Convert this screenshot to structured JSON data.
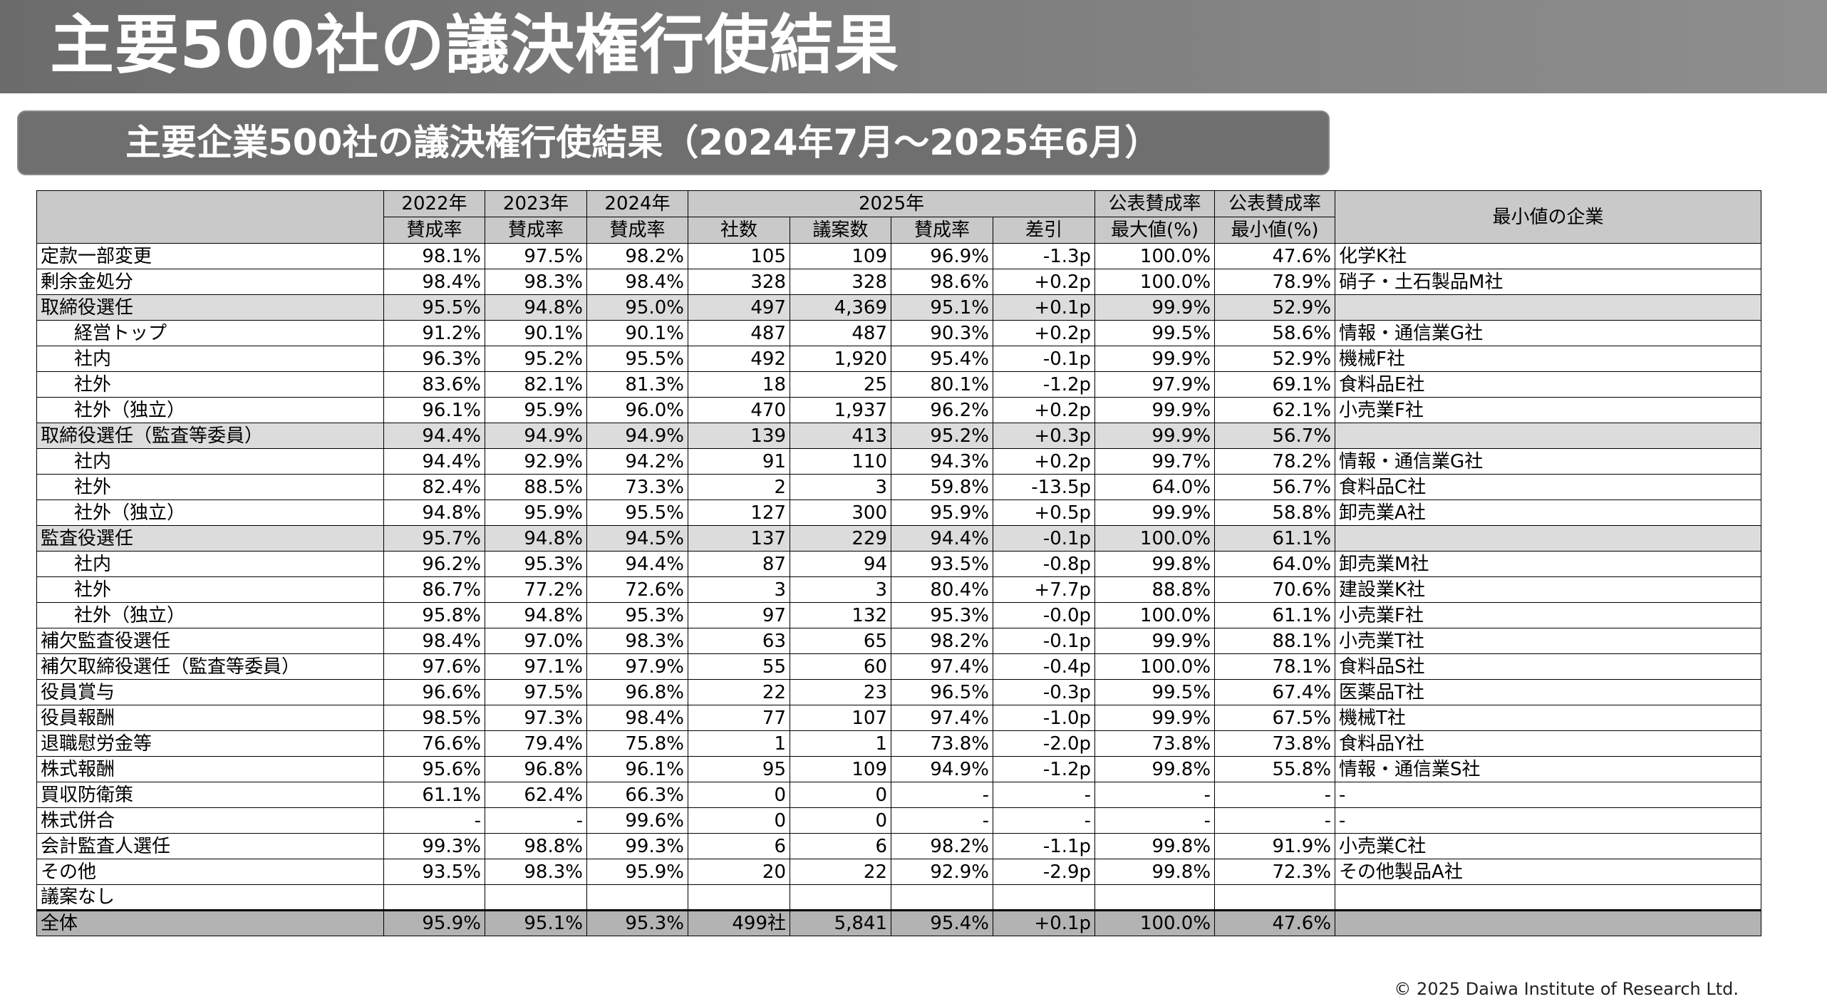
{
  "title": "主要500社の議決権行使結果",
  "subtitle": "主要企業500社の議決権行使結果（2024年7月～2025年6月）",
  "table": {
    "header": {
      "y2022": "2022年",
      "y2023": "2023年",
      "y2024": "2024年",
      "y2025": "2025年",
      "max_top": "公表賛成率",
      "min_top": "公表賛成率",
      "company": "最小値の企業",
      "approval": "賛成率",
      "companies_count": "社数",
      "proposals": "議案数",
      "diff": "差引",
      "max_bottom": "最大値(%)",
      "min_bottom": "最小値(%)"
    },
    "rows": [
      {
        "label": "定款一部変更",
        "style": "normal",
        "y2022": "98.1%",
        "y2023": "97.5%",
        "y2024": "98.2%",
        "companies": "105",
        "proposals": "109",
        "rate": "96.9%",
        "diff": "-1.3p",
        "max": "100.0%",
        "min": "47.6%",
        "company": "化学K社"
      },
      {
        "label": "剰余金処分",
        "style": "normal",
        "y2022": "98.4%",
        "y2023": "98.3%",
        "y2024": "98.4%",
        "companies": "328",
        "proposals": "328",
        "rate": "98.6%",
        "diff": "+0.2p",
        "max": "100.0%",
        "min": "78.9%",
        "company": "硝子・土石製品M社"
      },
      {
        "label": "取締役選任",
        "style": "shade",
        "y2022": "95.5%",
        "y2023": "94.8%",
        "y2024": "95.0%",
        "companies": "497",
        "proposals": "4,369",
        "rate": "95.1%",
        "diff": "+0.1p",
        "max": "99.9%",
        "min": "52.9%",
        "company": ""
      },
      {
        "label": "経営トップ",
        "style": "sub",
        "y2022": "91.2%",
        "y2023": "90.1%",
        "y2024": "90.1%",
        "companies": "487",
        "proposals": "487",
        "rate": "90.3%",
        "diff": "+0.2p",
        "max": "99.5%",
        "min": "58.6%",
        "company": "情報・通信業G社"
      },
      {
        "label": "社内",
        "style": "sub",
        "y2022": "96.3%",
        "y2023": "95.2%",
        "y2024": "95.5%",
        "companies": "492",
        "proposals": "1,920",
        "rate": "95.4%",
        "diff": "-0.1p",
        "max": "99.9%",
        "min": "52.9%",
        "company": "機械F社"
      },
      {
        "label": "社外",
        "style": "sub",
        "y2022": "83.6%",
        "y2023": "82.1%",
        "y2024": "81.3%",
        "companies": "18",
        "proposals": "25",
        "rate": "80.1%",
        "diff": "-1.2p",
        "max": "97.9%",
        "min": "69.1%",
        "company": "食料品E社"
      },
      {
        "label": "社外（独立）",
        "style": "sub",
        "y2022": "96.1%",
        "y2023": "95.9%",
        "y2024": "96.0%",
        "companies": "470",
        "proposals": "1,937",
        "rate": "96.2%",
        "diff": "+0.2p",
        "max": "99.9%",
        "min": "62.1%",
        "company": "小売業F社"
      },
      {
        "label": "取締役選任（監査等委員）",
        "style": "shade",
        "y2022": "94.4%",
        "y2023": "94.9%",
        "y2024": "94.9%",
        "companies": "139",
        "proposals": "413",
        "rate": "95.2%",
        "diff": "+0.3p",
        "max": "99.9%",
        "min": "56.7%",
        "company": ""
      },
      {
        "label": "社内",
        "style": "sub",
        "y2022": "94.4%",
        "y2023": "92.9%",
        "y2024": "94.2%",
        "companies": "91",
        "proposals": "110",
        "rate": "94.3%",
        "diff": "+0.2p",
        "max": "99.7%",
        "min": "78.2%",
        "company": "情報・通信業G社"
      },
      {
        "label": "社外",
        "style": "sub",
        "y2022": "82.4%",
        "y2023": "88.5%",
        "y2024": "73.3%",
        "companies": "2",
        "proposals": "3",
        "rate": "59.8%",
        "diff": "-13.5p",
        "max": "64.0%",
        "min": "56.7%",
        "company": "食料品C社"
      },
      {
        "label": "社外（独立）",
        "style": "sub",
        "y2022": "94.8%",
        "y2023": "95.9%",
        "y2024": "95.5%",
        "companies": "127",
        "proposals": "300",
        "rate": "95.9%",
        "diff": "+0.5p",
        "max": "99.9%",
        "min": "58.8%",
        "company": "卸売業A社"
      },
      {
        "label": "監査役選任",
        "style": "shade",
        "y2022": "95.7%",
        "y2023": "94.8%",
        "y2024": "94.5%",
        "companies": "137",
        "proposals": "229",
        "rate": "94.4%",
        "diff": "-0.1p",
        "max": "100.0%",
        "min": "61.1%",
        "company": ""
      },
      {
        "label": "社内",
        "style": "sub",
        "y2022": "96.2%",
        "y2023": "95.3%",
        "y2024": "94.4%",
        "companies": "87",
        "proposals": "94",
        "rate": "93.5%",
        "diff": "-0.8p",
        "max": "99.8%",
        "min": "64.0%",
        "company": "卸売業M社"
      },
      {
        "label": "社外",
        "style": "sub",
        "y2022": "86.7%",
        "y2023": "77.2%",
        "y2024": "72.6%",
        "companies": "3",
        "proposals": "3",
        "rate": "80.4%",
        "diff": "+7.7p",
        "max": "88.8%",
        "min": "70.6%",
        "company": "建設業K社"
      },
      {
        "label": "社外（独立）",
        "style": "sub",
        "y2022": "95.8%",
        "y2023": "94.8%",
        "y2024": "95.3%",
        "companies": "97",
        "proposals": "132",
        "rate": "95.3%",
        "diff": "-0.0p",
        "max": "100.0%",
        "min": "61.1%",
        "company": "小売業F社"
      },
      {
        "label": "補欠監査役選任",
        "style": "normal",
        "y2022": "98.4%",
        "y2023": "97.0%",
        "y2024": "98.3%",
        "companies": "63",
        "proposals": "65",
        "rate": "98.2%",
        "diff": "-0.1p",
        "max": "99.9%",
        "min": "88.1%",
        "company": "小売業T社"
      },
      {
        "label": "補欠取締役選任（監査等委員）",
        "style": "normal",
        "y2022": "97.6%",
        "y2023": "97.1%",
        "y2024": "97.9%",
        "companies": "55",
        "proposals": "60",
        "rate": "97.4%",
        "diff": "-0.4p",
        "max": "100.0%",
        "min": "78.1%",
        "company": "食料品S社"
      },
      {
        "label": "役員賞与",
        "style": "normal",
        "y2022": "96.6%",
        "y2023": "97.5%",
        "y2024": "96.8%",
        "companies": "22",
        "proposals": "23",
        "rate": "96.5%",
        "diff": "-0.3p",
        "max": "99.5%",
        "min": "67.4%",
        "company": "医薬品T社"
      },
      {
        "label": "役員報酬",
        "style": "normal",
        "y2022": "98.5%",
        "y2023": "97.3%",
        "y2024": "98.4%",
        "companies": "77",
        "proposals": "107",
        "rate": "97.4%",
        "diff": "-1.0p",
        "max": "99.9%",
        "min": "67.5%",
        "company": "機械T社"
      },
      {
        "label": "退職慰労金等",
        "style": "normal",
        "y2022": "76.6%",
        "y2023": "79.4%",
        "y2024": "75.8%",
        "companies": "1",
        "proposals": "1",
        "rate": "73.8%",
        "diff": "-2.0p",
        "max": "73.8%",
        "min": "73.8%",
        "company": "食料品Y社"
      },
      {
        "label": "株式報酬",
        "style": "normal",
        "y2022": "95.6%",
        "y2023": "96.8%",
        "y2024": "96.1%",
        "companies": "95",
        "proposals": "109",
        "rate": "94.9%",
        "diff": "-1.2p",
        "max": "99.8%",
        "min": "55.8%",
        "company": "情報・通信業S社"
      },
      {
        "label": "買収防衛策",
        "style": "normal",
        "y2022": "61.1%",
        "y2023": "62.4%",
        "y2024": "66.3%",
        "companies": "0",
        "proposals": "0",
        "rate": "-",
        "diff": "-",
        "max": "-",
        "min": "-",
        "company": "-"
      },
      {
        "label": "株式併合",
        "style": "normal",
        "y2022": "-",
        "y2023": "-",
        "y2024": "99.6%",
        "companies": "0",
        "proposals": "0",
        "rate": "-",
        "diff": "-",
        "max": "-",
        "min": "-",
        "company": "-"
      },
      {
        "label": "会計監査人選任",
        "style": "normal",
        "y2022": "99.3%",
        "y2023": "98.8%",
        "y2024": "99.3%",
        "companies": "6",
        "proposals": "6",
        "rate": "98.2%",
        "diff": "-1.1p",
        "max": "99.8%",
        "min": "91.9%",
        "company": "小売業C社"
      },
      {
        "label": "その他",
        "style": "normal",
        "y2022": "93.5%",
        "y2023": "98.3%",
        "y2024": "95.9%",
        "companies": "20",
        "proposals": "22",
        "rate": "92.9%",
        "diff": "-2.9p",
        "max": "99.8%",
        "min": "72.3%",
        "company": "その他製品A社"
      },
      {
        "label": "議案なし",
        "style": "normal",
        "y2022": "",
        "y2023": "",
        "y2024": "",
        "companies": "",
        "proposals": "",
        "rate": "",
        "diff": "",
        "max": "",
        "min": "",
        "company": ""
      },
      {
        "label": "全体",
        "style": "total",
        "y2022": "95.9%",
        "y2023": "95.1%",
        "y2024": "95.3%",
        "companies": "499社",
        "proposals": "5,841",
        "rate": "95.4%",
        "diff": "+0.1p",
        "max": "100.0%",
        "min": "47.6%",
        "company": ""
      }
    ]
  },
  "footer": "© 2025 Daiwa Institute of Research Ltd."
}
